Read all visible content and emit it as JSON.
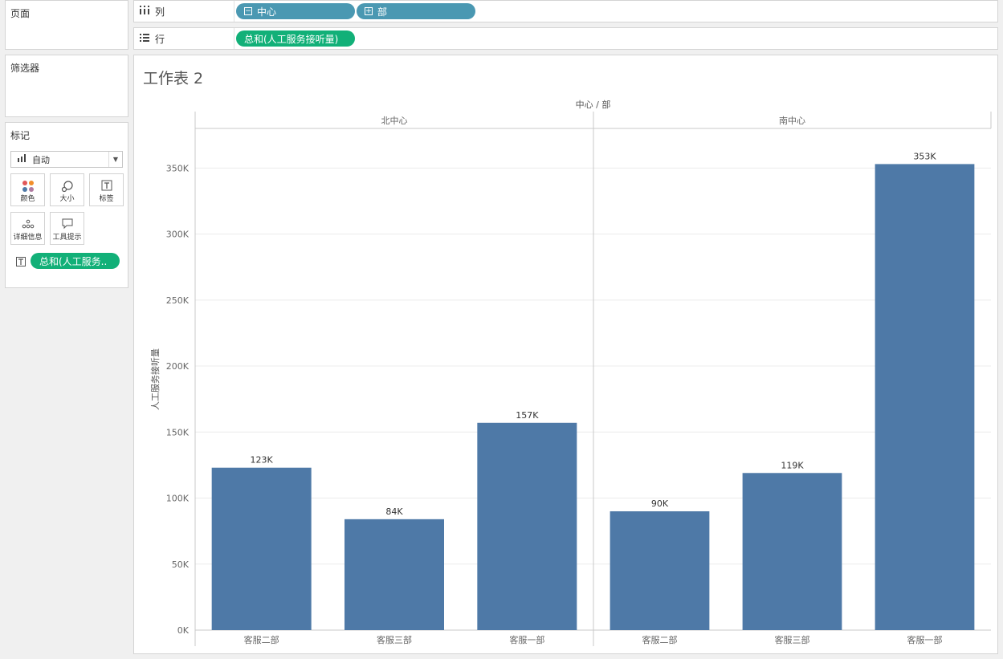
{
  "left": {
    "pages_title": "页面",
    "filters_title": "筛选器",
    "marks": {
      "title": "标记",
      "type_value": "自动",
      "buttons": [
        {
          "label": "颜色"
        },
        {
          "label": "大小"
        },
        {
          "label": "标签"
        },
        {
          "label": "详细信息"
        },
        {
          "label": "工具提示"
        }
      ],
      "label_pill": "总和(人工服务.."
    }
  },
  "shelves": {
    "columns_label": "列",
    "rows_label": "行",
    "column_pills": [
      "中心",
      "部"
    ],
    "row_pill": "总和(人工服务接听量)"
  },
  "sheet": {
    "title": "工作表 2"
  },
  "colors": {
    "bar": "#4e79a7",
    "dim_pill": "#4a98b2",
    "measure_pill": "#12b078"
  },
  "chart_data": {
    "type": "bar",
    "header_title": "中心 / 部",
    "ylabel": "人工服务接听量",
    "ylim": [
      0,
      380000
    ],
    "yticks": [
      0,
      50000,
      100000,
      150000,
      200000,
      250000,
      300000,
      350000
    ],
    "ytick_labels": [
      "0K",
      "50K",
      "100K",
      "150K",
      "200K",
      "250K",
      "300K",
      "350K"
    ],
    "panes": [
      {
        "name": "北中心",
        "categories": [
          "客服二部",
          "客服三部",
          "客服一部"
        ],
        "values": [
          123000,
          84000,
          157000
        ],
        "labels": [
          "123K",
          "84K",
          "157K"
        ]
      },
      {
        "name": "南中心",
        "categories": [
          "客服二部",
          "客服三部",
          "客服一部"
        ],
        "values": [
          90000,
          119000,
          353000
        ],
        "labels": [
          "90K",
          "119K",
          "353K"
        ]
      }
    ]
  }
}
